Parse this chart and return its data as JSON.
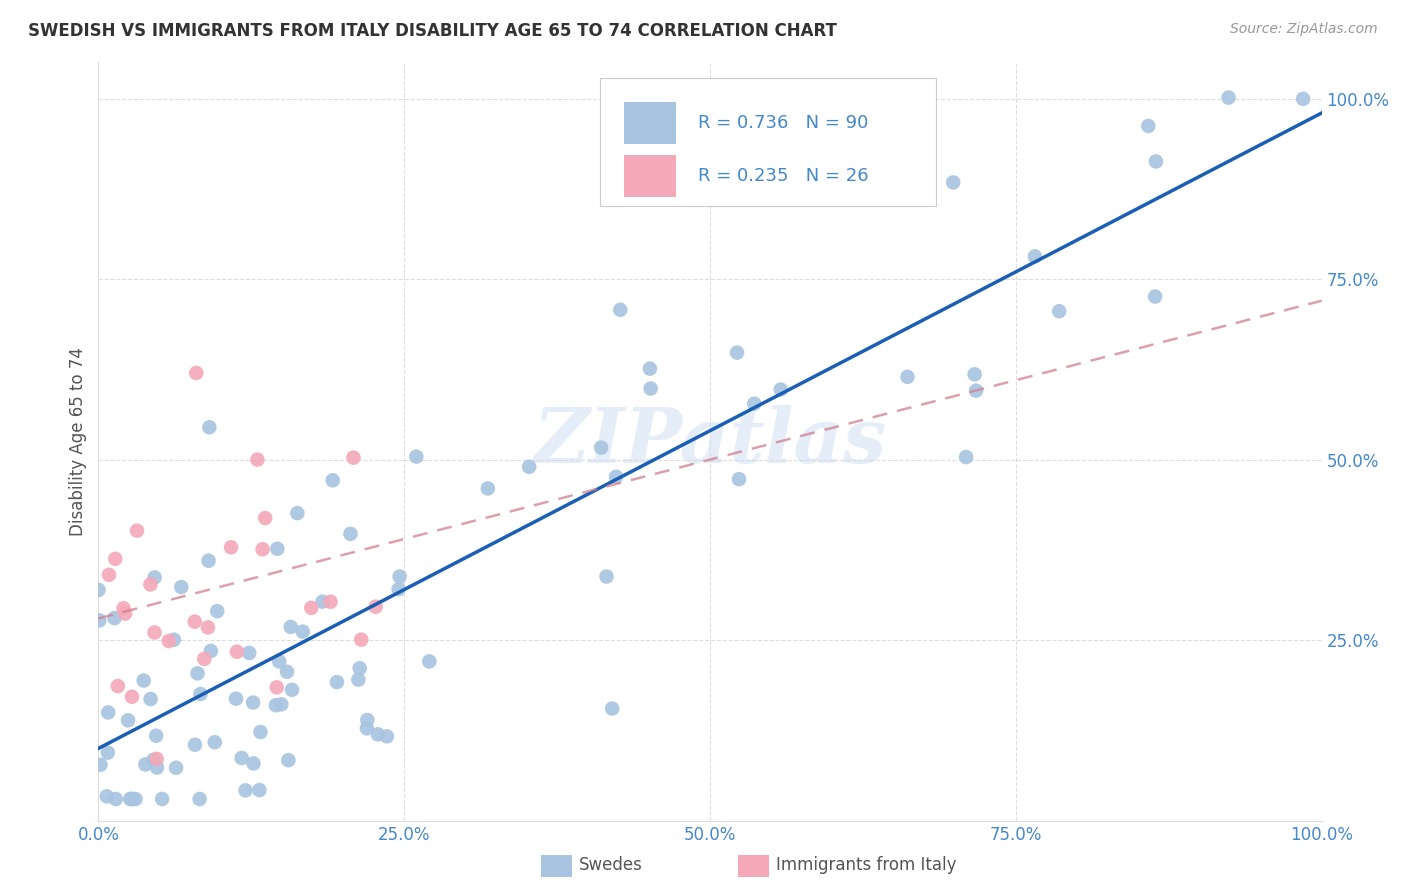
{
  "title": "SWEDISH VS IMMIGRANTS FROM ITALY DISABILITY AGE 65 TO 74 CORRELATION CHART",
  "source": "Source: ZipAtlas.com",
  "ylabel": "Disability Age 65 to 74",
  "xlabel": "",
  "swede_color": "#a8c4e0",
  "italy_color": "#f4a8b8",
  "swede_R": 0.736,
  "swede_N": 90,
  "italy_R": 0.235,
  "italy_N": 26,
  "swede_line_color": "#1a5fb4",
  "italy_line_color": "#d08090",
  "watermark": "ZIPatlas",
  "legend_label_swede": "Swedes",
  "legend_label_italy": "Immigrants from Italy",
  "tick_color": "#4488cc",
  "grid_color": "#dddddd",
  "title_color": "#333333",
  "source_color": "#999999",
  "ylabel_color": "#555555"
}
